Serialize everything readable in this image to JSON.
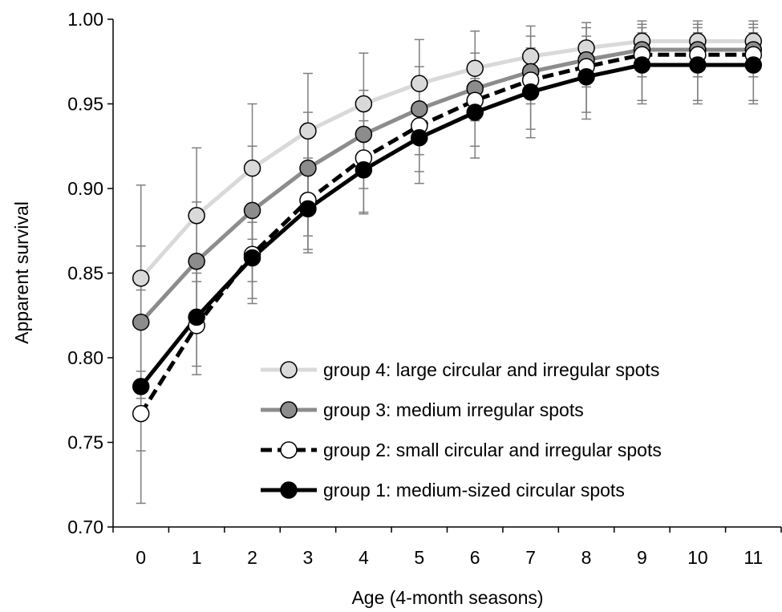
{
  "chart_data": {
    "type": "line",
    "xlabel": "Age (4-month seasons)",
    "ylabel": "Apparent survival",
    "x": [
      0,
      1,
      2,
      3,
      4,
      5,
      6,
      7,
      8,
      9,
      10,
      11
    ],
    "x_tick_labels": [
      "0",
      "1",
      "2",
      "3",
      "4",
      "5",
      "6",
      "7",
      "8",
      "9",
      "10",
      "11"
    ],
    "ylim": [
      0.7,
      1.0
    ],
    "y_ticks": [
      0.7,
      0.75,
      0.8,
      0.85,
      0.9,
      0.95,
      1.0
    ],
    "y_tick_labels": [
      "0.70",
      "0.75",
      "0.80",
      "0.85",
      "0.90",
      "0.95",
      "1.00"
    ],
    "grid": false,
    "legend_position": "bottom-right",
    "series": [
      {
        "name": "group 4: large circular and irregular spots",
        "line_color": "#d9d9d9",
        "marker_fill": "#d9d9d9",
        "dashed": false,
        "values": [
          0.847,
          0.884,
          0.912,
          0.934,
          0.95,
          0.962,
          0.971,
          0.978,
          0.983,
          0.987,
          0.987,
          0.987
        ],
        "err_low": [
          0.792,
          0.845,
          0.87,
          0.897,
          0.918,
          0.938,
          0.95,
          0.957,
          0.965,
          0.972,
          0.972,
          0.972
        ],
        "err_high": [
          0.902,
          0.924,
          0.95,
          0.968,
          0.98,
          0.988,
          0.993,
          0.996,
          0.998,
          0.999,
          0.999,
          0.999
        ]
      },
      {
        "name": "group 3: medium irregular spots",
        "line_color": "#8c8c8c",
        "marker_fill": "#8c8c8c",
        "dashed": false,
        "values": [
          0.821,
          0.857,
          0.887,
          0.912,
          0.932,
          0.947,
          0.959,
          0.969,
          0.976,
          0.982,
          0.982,
          0.982
        ],
        "err_low": [
          0.776,
          0.82,
          0.845,
          0.872,
          0.9,
          0.92,
          0.94,
          0.95,
          0.96,
          0.966,
          0.966,
          0.966
        ],
        "err_high": [
          0.866,
          0.892,
          0.925,
          0.945,
          0.958,
          0.972,
          0.98,
          0.99,
          0.995,
          0.997,
          0.997,
          0.997
        ]
      },
      {
        "name": "group 2: small circular and irregular spots",
        "line_color": "#000000",
        "marker_fill": "#ffffff",
        "dashed": true,
        "values": [
          0.767,
          0.819,
          0.861,
          0.893,
          0.918,
          0.937,
          0.952,
          0.964,
          0.972,
          0.979,
          0.979,
          0.979
        ],
        "err_low": [
          0.714,
          0.79,
          0.832,
          0.862,
          0.885,
          0.91,
          0.925,
          0.935,
          0.945,
          0.952,
          0.952,
          0.952
        ],
        "err_high": [
          0.84,
          0.855,
          0.89,
          0.918,
          0.94,
          0.96,
          0.972,
          0.983,
          0.99,
          0.995,
          0.995,
          0.995
        ]
      },
      {
        "name": "group 1: medium-sized circular spots",
        "line_color": "#000000",
        "marker_fill": "#000000",
        "dashed": false,
        "values": [
          0.783,
          0.824,
          0.859,
          0.888,
          0.911,
          0.93,
          0.945,
          0.957,
          0.966,
          0.973,
          0.973,
          0.973
        ],
        "err_low": [
          0.745,
          0.795,
          0.835,
          0.864,
          0.886,
          0.903,
          0.918,
          0.93,
          0.941,
          0.95,
          0.95,
          0.95
        ],
        "err_high": [
          0.822,
          0.85,
          0.88,
          0.91,
          0.93,
          0.95,
          0.965,
          0.975,
          0.985,
          0.992,
          0.992,
          0.992
        ]
      }
    ]
  }
}
